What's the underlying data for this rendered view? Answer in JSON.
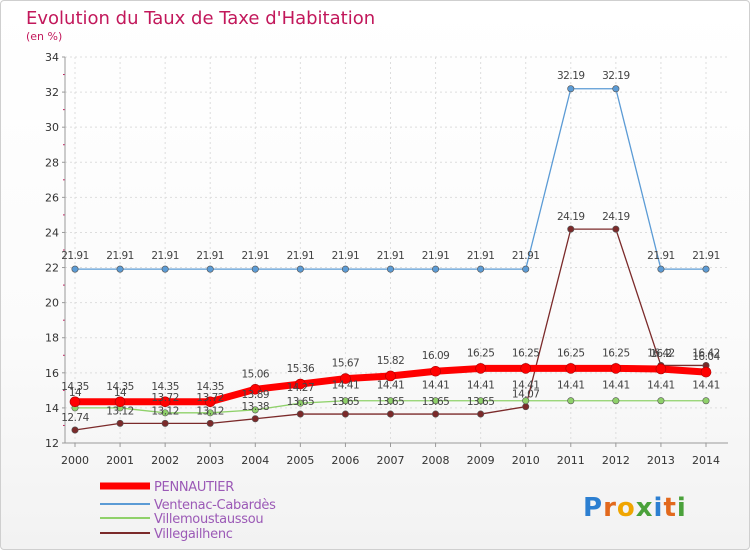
{
  "chart_data": {
    "type": "line",
    "title": "Evolution du Taux de Taxe d'Habitation",
    "subtitle": "(en %)",
    "categories": [
      "2000",
      "2001",
      "2002",
      "2003",
      "2004",
      "2005",
      "2006",
      "2007",
      "2008",
      "2009",
      "2010",
      "2011",
      "2012",
      "2013",
      "2014"
    ],
    "ylim": [
      12,
      34
    ],
    "yticks": [
      12,
      14,
      16,
      18,
      20,
      22,
      24,
      26,
      28,
      30,
      32,
      34
    ],
    "grid": true,
    "legend_position": "bottom-left",
    "series": [
      {
        "name": "PENNAUTIER",
        "color": "#ff0000",
        "values": [
          14.35,
          14.35,
          14.35,
          14.35,
          15.06,
          15.36,
          15.67,
          15.82,
          16.09,
          16.25,
          16.25,
          16.25,
          16.25,
          16.22,
          16.04
        ],
        "labels": [
          "14.35",
          "14.35",
          "14.35",
          "14.35",
          "15.06",
          "15.36",
          "15.67",
          "15.82",
          "16.09",
          "16.25",
          "16.25",
          "16.25",
          "16.25",
          "16.2",
          "16.04"
        ]
      },
      {
        "name": "Ventenac-Cabardès",
        "color": "#5b9bd5",
        "values": [
          21.91,
          21.91,
          21.91,
          21.91,
          21.91,
          21.91,
          21.91,
          21.91,
          21.91,
          21.91,
          21.91,
          32.19,
          32.19,
          21.91,
          21.91
        ],
        "labels": [
          "21.91",
          "21.91",
          "21.91",
          "21.91",
          "21.91",
          "21.91",
          "21.91",
          "21.91",
          "21.91",
          "21.91",
          "21.91",
          "32.19",
          "32.19",
          "21.91",
          "21.91"
        ]
      },
      {
        "name": "Villemoustaussou",
        "color": "#8fd16a",
        "values": [
          14.0,
          14.0,
          13.72,
          13.72,
          13.89,
          14.27,
          14.41,
          14.41,
          14.41,
          14.41,
          14.41,
          14.41,
          14.41,
          14.41,
          14.41
        ],
        "labels": [
          "14",
          "14",
          "13.72",
          "13.72",
          "13.89",
          "14.27",
          "14.41",
          "14.41",
          "14.41",
          "14.41",
          "14.41",
          "14.41",
          "14.41",
          "14.41",
          "14.41"
        ]
      },
      {
        "name": "Villegailhenc",
        "color": "#7b2a2a",
        "values": [
          12.74,
          13.12,
          13.12,
          13.12,
          13.38,
          13.65,
          13.65,
          13.65,
          13.65,
          13.65,
          14.07,
          24.19,
          24.19,
          16.42,
          16.42
        ],
        "labels": [
          "12.74",
          "13.12",
          "13.12",
          "13.12",
          "13.38",
          "13.65",
          "13.65",
          "13.65",
          "13.65",
          "13.65",
          "14.07",
          "24.19",
          "24.19",
          "16.42",
          "16.42"
        ]
      }
    ]
  },
  "branding": {
    "logo_text": "Proxiti"
  }
}
